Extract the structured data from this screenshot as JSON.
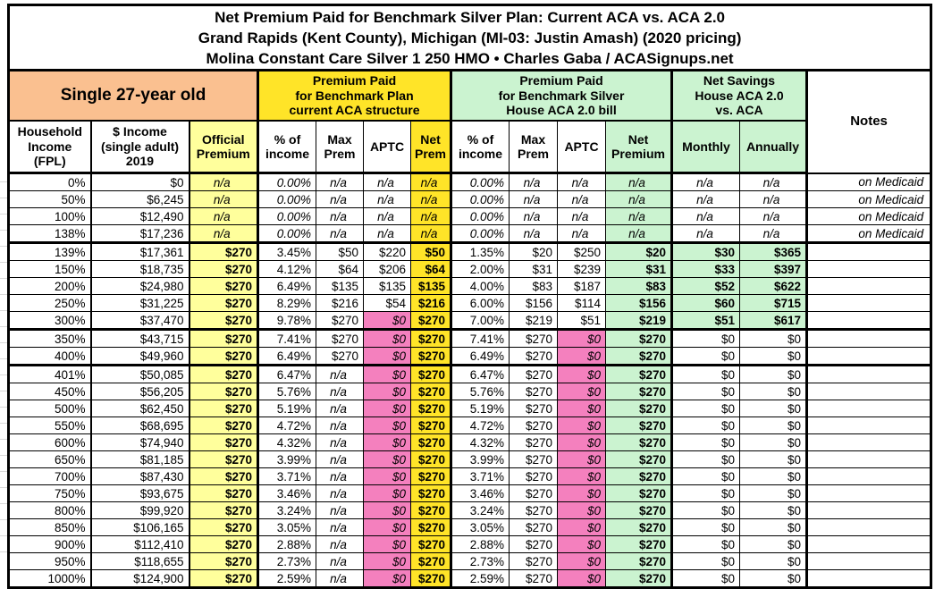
{
  "title": {
    "line1": "Net Premium Paid for Benchmark Silver Plan: Current ACA vs. ACA 2.0",
    "line2": "Grand Rapids (Kent County), Michigan (MI-03: Justin Amash) (2020 pricing)",
    "line3": "Molina Constant Care Silver 1 250 HMO • Charles Gaba / ACASignups.net"
  },
  "group_headers": {
    "subject": "Single 27-year old",
    "aca": "Premium Paid\nfor Benchmark Plan\ncurrent ACA structure",
    "aca2": "Premium Paid\nfor Benchmark Silver\nHouse ACA 2.0 bill",
    "savings": "Net Savings\nHouse ACA 2.0\nvs. ACA",
    "notes": "Notes"
  },
  "column_headers": {
    "fpl": "Household\nIncome\n(FPL)",
    "income": "$ Income\n(single adult)\n2019",
    "official": "Official\nPremium",
    "pct_aca": "% of\nincome",
    "max_aca": "Max\nPrem",
    "aptc_aca": "APTC",
    "net_aca": "Net\nPrem",
    "pct_aca2": "% of\nincome",
    "max_aca2": "Max\nPrem",
    "aptc_aca2": "APTC",
    "net_aca2": "Net\nPremium",
    "monthly": "Monthly",
    "annually": "Annually"
  },
  "colors": {
    "peach": "#FAC090",
    "yellow_light": "#FFFF9C",
    "yellow": "#FFE428",
    "pink": "#F480BE",
    "green": "#CBF3D0"
  },
  "chart_data": {
    "type": "table",
    "title": "Net Premium Paid for Benchmark Silver Plan: Current ACA vs. ACA 2.0",
    "columns": [
      "Household Income (FPL)",
      "$ Income (single adult) 2019",
      "Official Premium",
      "ACA % of income",
      "ACA Max Prem",
      "ACA APTC",
      "ACA Net Prem",
      "ACA 2.0 % of income",
      "ACA 2.0 Max Prem",
      "ACA 2.0 APTC",
      "ACA 2.0 Net Premium",
      "Net Savings Monthly",
      "Net Savings Annually",
      "Notes"
    ],
    "rows": [
      [
        "0%",
        "$0",
        "n/a",
        "0.00%",
        "n/a",
        "n/a",
        "n/a",
        "0.00%",
        "n/a",
        "n/a",
        "n/a",
        "n/a",
        "n/a",
        "on Medicaid"
      ],
      [
        "50%",
        "$6,245",
        "n/a",
        "0.00%",
        "n/a",
        "n/a",
        "n/a",
        "0.00%",
        "n/a",
        "n/a",
        "n/a",
        "n/a",
        "n/a",
        "on Medicaid"
      ],
      [
        "100%",
        "$12,490",
        "n/a",
        "0.00%",
        "n/a",
        "n/a",
        "n/a",
        "0.00%",
        "n/a",
        "n/a",
        "n/a",
        "n/a",
        "n/a",
        "on Medicaid"
      ],
      [
        "138%",
        "$17,236",
        "n/a",
        "0.00%",
        "n/a",
        "n/a",
        "n/a",
        "0.00%",
        "n/a",
        "n/a",
        "n/a",
        "n/a",
        "n/a",
        "on Medicaid"
      ],
      [
        "139%",
        "$17,361",
        "$270",
        "3.45%",
        "$50",
        "$220",
        "$50",
        "1.35%",
        "$20",
        "$250",
        "$20",
        "$30",
        "$365",
        ""
      ],
      [
        "150%",
        "$18,735",
        "$270",
        "4.12%",
        "$64",
        "$206",
        "$64",
        "2.00%",
        "$31",
        "$239",
        "$31",
        "$33",
        "$397",
        ""
      ],
      [
        "200%",
        "$24,980",
        "$270",
        "6.49%",
        "$135",
        "$135",
        "$135",
        "4.00%",
        "$83",
        "$187",
        "$83",
        "$52",
        "$622",
        ""
      ],
      [
        "250%",
        "$31,225",
        "$270",
        "8.29%",
        "$216",
        "$54",
        "$216",
        "6.00%",
        "$156",
        "$114",
        "$156",
        "$60",
        "$715",
        ""
      ],
      [
        "300%",
        "$37,470",
        "$270",
        "9.78%",
        "$270",
        "$0",
        "$270",
        "7.00%",
        "$219",
        "$51",
        "$219",
        "$51",
        "$617",
        ""
      ],
      [
        "350%",
        "$43,715",
        "$270",
        "7.41%",
        "$270",
        "$0",
        "$270",
        "7.41%",
        "$270",
        "$0",
        "$270",
        "$0",
        "$0",
        ""
      ],
      [
        "400%",
        "$49,960",
        "$270",
        "6.49%",
        "$270",
        "$0",
        "$270",
        "6.49%",
        "$270",
        "$0",
        "$270",
        "$0",
        "$0",
        ""
      ],
      [
        "401%",
        "$50,085",
        "$270",
        "6.47%",
        "n/a",
        "$0",
        "$270",
        "6.47%",
        "$270",
        "$0",
        "$270",
        "$0",
        "$0",
        ""
      ],
      [
        "450%",
        "$56,205",
        "$270",
        "5.76%",
        "n/a",
        "$0",
        "$270",
        "5.76%",
        "$270",
        "$0",
        "$270",
        "$0",
        "$0",
        ""
      ],
      [
        "500%",
        "$62,450",
        "$270",
        "5.19%",
        "n/a",
        "$0",
        "$270",
        "5.19%",
        "$270",
        "$0",
        "$270",
        "$0",
        "$0",
        ""
      ],
      [
        "550%",
        "$68,695",
        "$270",
        "4.72%",
        "n/a",
        "$0",
        "$270",
        "4.72%",
        "$270",
        "$0",
        "$270",
        "$0",
        "$0",
        ""
      ],
      [
        "600%",
        "$74,940",
        "$270",
        "4.32%",
        "n/a",
        "$0",
        "$270",
        "4.32%",
        "$270",
        "$0",
        "$270",
        "$0",
        "$0",
        ""
      ],
      [
        "650%",
        "$81,185",
        "$270",
        "3.99%",
        "n/a",
        "$0",
        "$270",
        "3.99%",
        "$270",
        "$0",
        "$270",
        "$0",
        "$0",
        ""
      ],
      [
        "700%",
        "$87,430",
        "$270",
        "3.71%",
        "n/a",
        "$0",
        "$270",
        "3.71%",
        "$270",
        "$0",
        "$270",
        "$0",
        "$0",
        ""
      ],
      [
        "750%",
        "$93,675",
        "$270",
        "3.46%",
        "n/a",
        "$0",
        "$270",
        "3.46%",
        "$270",
        "$0",
        "$270",
        "$0",
        "$0",
        ""
      ],
      [
        "800%",
        "$99,920",
        "$270",
        "3.24%",
        "n/a",
        "$0",
        "$270",
        "3.24%",
        "$270",
        "$0",
        "$270",
        "$0",
        "$0",
        ""
      ],
      [
        "850%",
        "$106,165",
        "$270",
        "3.05%",
        "n/a",
        "$0",
        "$270",
        "3.05%",
        "$270",
        "$0",
        "$270",
        "$0",
        "$0",
        ""
      ],
      [
        "900%",
        "$112,410",
        "$270",
        "2.88%",
        "n/a",
        "$0",
        "$270",
        "2.88%",
        "$270",
        "$0",
        "$270",
        "$0",
        "$0",
        ""
      ],
      [
        "950%",
        "$118,655",
        "$270",
        "2.73%",
        "n/a",
        "$0",
        "$270",
        "2.73%",
        "$270",
        "$0",
        "$270",
        "$0",
        "$0",
        ""
      ],
      [
        "1000%",
        "$124,900",
        "$270",
        "2.59%",
        "n/a",
        "$0",
        "$270",
        "2.59%",
        "$270",
        "$0",
        "$270",
        "$0",
        "$0",
        ""
      ]
    ]
  }
}
